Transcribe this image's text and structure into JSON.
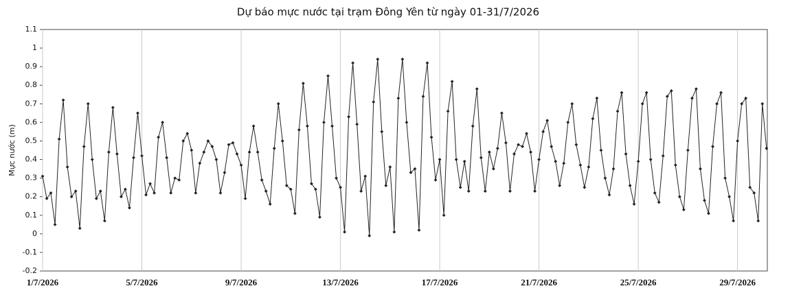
{
  "chart_data": {
    "type": "line",
    "title": "Dự báo mực nước tại trạm Đông Yên từ ngày 01-31/7/2026",
    "y_label": "Mực nước (m)",
    "xlim": [
      1,
      30.2
    ],
    "xticks": [
      {
        "value": 1,
        "label": "1/7/2026"
      },
      {
        "value": 5,
        "label": "5/7/2026"
      },
      {
        "value": 9,
        "label": "9/7/2026"
      },
      {
        "value": 13,
        "label": "13/7/2026"
      },
      {
        "value": 17,
        "label": "17/7/2026"
      },
      {
        "value": 21,
        "label": "21/7/2026"
      },
      {
        "value": 25,
        "label": "25/7/2026"
      },
      {
        "value": 29,
        "label": "29/7/2026"
      }
    ],
    "ylim": [
      -0.2,
      1.1
    ],
    "yticks": [
      -0.2,
      -0.1,
      0,
      0.1,
      0.2,
      0.3,
      0.4,
      0.5,
      0.6,
      0.7,
      0.8,
      0.9,
      1,
      1.1
    ],
    "grid": true,
    "color": "#222222",
    "x": [
      1,
      1.167,
      1.333,
      1.5,
      1.667,
      1.833,
      2,
      2.167,
      2.333,
      2.5,
      2.667,
      2.833,
      3,
      3.167,
      3.333,
      3.5,
      3.667,
      3.833,
      4,
      4.167,
      4.333,
      4.5,
      4.667,
      4.833,
      5,
      5.167,
      5.333,
      5.5,
      5.667,
      5.833,
      6,
      6.167,
      6.333,
      6.5,
      6.667,
      6.833,
      7,
      7.167,
      7.333,
      7.5,
      7.667,
      7.833,
      8,
      8.167,
      8.333,
      8.5,
      8.667,
      8.833,
      9,
      9.167,
      9.333,
      9.5,
      9.667,
      9.833,
      10,
      10.167,
      10.333,
      10.5,
      10.667,
      10.833,
      11,
      11.167,
      11.333,
      11.5,
      11.667,
      11.833,
      12,
      12.167,
      12.333,
      12.5,
      12.667,
      12.833,
      13,
      13.167,
      13.333,
      13.5,
      13.667,
      13.833,
      14,
      14.167,
      14.333,
      14.5,
      14.667,
      14.833,
      15,
      15.167,
      15.333,
      15.5,
      15.667,
      15.833,
      16,
      16.167,
      16.333,
      16.5,
      16.667,
      16.833,
      17,
      17.167,
      17.333,
      17.5,
      17.667,
      17.833,
      18,
      18.167,
      18.333,
      18.5,
      18.667,
      18.833,
      19,
      19.167,
      19.333,
      19.5,
      19.667,
      19.833,
      20,
      20.167,
      20.333,
      20.5,
      20.667,
      20.833,
      21,
      21.167,
      21.333,
      21.5,
      21.667,
      21.833,
      22,
      22.167,
      22.333,
      22.5,
      22.667,
      22.833,
      23,
      23.167,
      23.333,
      23.5,
      23.667,
      23.833,
      24,
      24.167,
      24.333,
      24.5,
      24.667,
      24.833,
      25,
      25.167,
      25.333,
      25.5,
      25.667,
      25.833,
      26,
      26.167,
      26.333,
      26.5,
      26.667,
      26.833,
      27,
      27.167,
      27.333,
      27.5,
      27.667,
      27.833,
      28,
      28.167,
      28.333,
      28.5,
      28.667,
      28.833,
      29,
      29.167,
      29.333,
      29.5,
      29.667,
      29.833,
      30,
      30.167
    ],
    "values": [
      0.31,
      0.19,
      0.22,
      0.05,
      0.51,
      0.72,
      0.36,
      0.2,
      0.23,
      0.03,
      0.47,
      0.7,
      0.4,
      0.19,
      0.23,
      0.07,
      0.44,
      0.68,
      0.43,
      0.2,
      0.24,
      0.14,
      0.41,
      0.65,
      0.42,
      0.21,
      0.27,
      0.22,
      0.52,
      0.6,
      0.41,
      0.22,
      0.3,
      0.29,
      0.5,
      0.54,
      0.45,
      0.22,
      0.38,
      0.44,
      0.5,
      0.47,
      0.4,
      0.22,
      0.33,
      0.48,
      0.49,
      0.43,
      0.37,
      0.19,
      0.44,
      0.58,
      0.44,
      0.29,
      0.23,
      0.16,
      0.46,
      0.7,
      0.5,
      0.26,
      0.24,
      0.11,
      0.56,
      0.81,
      0.58,
      0.27,
      0.24,
      0.09,
      0.6,
      0.85,
      0.58,
      0.3,
      0.25,
      0.01,
      0.63,
      0.92,
      0.59,
      0.23,
      0.31,
      -0.01,
      0.71,
      0.94,
      0.55,
      0.26,
      0.36,
      0.01,
      0.73,
      0.94,
      0.6,
      0.33,
      0.35,
      0.02,
      0.74,
      0.92,
      0.52,
      0.29,
      0.4,
      0.1,
      0.66,
      0.82,
      0.4,
      0.25,
      0.39,
      0.23,
      0.58,
      0.78,
      0.41,
      0.23,
      0.44,
      0.35,
      0.46,
      0.65,
      0.49,
      0.23,
      0.43,
      0.48,
      0.47,
      0.54,
      0.44,
      0.23,
      0.4,
      0.55,
      0.61,
      0.47,
      0.39,
      0.26,
      0.38,
      0.6,
      0.7,
      0.48,
      0.37,
      0.25,
      0.36,
      0.62,
      0.73,
      0.45,
      0.3,
      0.21,
      0.35,
      0.66,
      0.76,
      0.43,
      0.26,
      0.16,
      0.39,
      0.7,
      0.76,
      0.4,
      0.22,
      0.17,
      0.42,
      0.74,
      0.77,
      0.37,
      0.2,
      0.13,
      0.45,
      0.73,
      0.78,
      0.35,
      0.18,
      0.11,
      0.47,
      0.7,
      0.76,
      0.3,
      0.2,
      0.07,
      0.5,
      0.7,
      0.73,
      0.25,
      0.22,
      0.07,
      0.7,
      0.46
    ]
  }
}
